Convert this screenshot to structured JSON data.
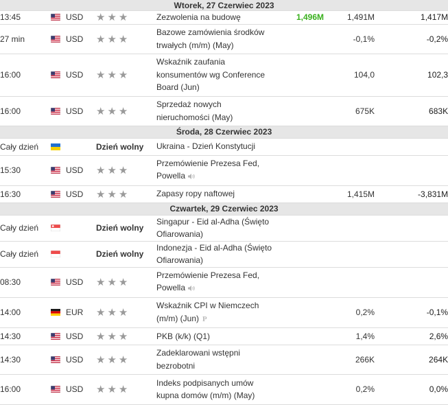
{
  "days": [
    {
      "date": "Wtorek, 27 Czerwiec 2023",
      "events": [
        {
          "time": "13:45",
          "flag": "us-flag-icon",
          "currency": "USD",
          "stars": "★★★",
          "event": [
            "Zezwolenia na budowę"
          ],
          "actual": "1,496M",
          "actual_color": "green",
          "forecast": "1,491M",
          "previous": "1,417M",
          "h": 19
        },
        {
          "time": "27 min",
          "flag": "us-flag-icon",
          "currency": "USD",
          "stars": "★★★",
          "event": [
            "Bazowe zamówienia środków",
            "trwałych (m/m) (May)"
          ],
          "actual": "",
          "forecast": "-0,1%",
          "previous": "-0,2%",
          "h": 43
        },
        {
          "time": "16:00",
          "flag": "us-flag-icon",
          "currency": "USD",
          "stars": "★★★",
          "event": [
            "Wskaźnik zaufania",
            "konsumentów wg Conference",
            "Board (Jun)"
          ],
          "actual": "",
          "forecast": "104,0",
          "previous": "102,3",
          "h": 62
        },
        {
          "time": "16:00",
          "flag": "us-flag-icon",
          "currency": "USD",
          "stars": "★★★",
          "event": [
            "Sprzedaż nowych",
            "nieruchomości (May)"
          ],
          "actual": "",
          "forecast": "675K",
          "previous": "683K",
          "h": 43
        }
      ]
    },
    {
      "date": "Środa, 28 Czerwiec 2023",
      "events": [
        {
          "time": "Cały dzień",
          "flag": "ua-flag-icon",
          "currency": "",
          "stars": "Dzień wolny",
          "holiday": true,
          "event": [
            "Ukraina - Dzień Konstytucji"
          ],
          "actual": "",
          "forecast": "",
          "previous": "",
          "h": 25
        },
        {
          "time": "15:30",
          "flag": "us-flag-icon",
          "currency": "USD",
          "stars": "★★★",
          "event": [
            "Przemówienie Prezesa Fed,",
            "Powella"
          ],
          "speech": true,
          "actual": "",
          "forecast": "",
          "previous": "",
          "h": 44
        },
        {
          "time": "16:30",
          "flag": "us-flag-icon",
          "currency": "USD",
          "stars": "★★★",
          "event": [
            "Zapasy ropy naftowej"
          ],
          "actual": "",
          "forecast": "1,415M",
          "previous": "-3,831M",
          "h": 25
        }
      ]
    },
    {
      "date": "Czwartek, 29 Czerwiec 2023",
      "events": [
        {
          "time": "Cały dzień",
          "flag": "sg-flag-icon",
          "currency": "",
          "stars": "Dzień wolny",
          "holiday": true,
          "event": [
            "Singapur - Eid al-Adha (Święto Ofiarowania)"
          ],
          "actual": "",
          "forecast": "",
          "previous": "",
          "h": 25
        },
        {
          "time": "Cały dzień",
          "flag": "id-flag-icon",
          "currency": "",
          "stars": "Dzień wolny",
          "holiday": true,
          "event": [
            "Indonezja - Eid al-Adha (Święto Ofiarowania)"
          ],
          "actual": "",
          "forecast": "",
          "previous": "",
          "h": 25
        },
        {
          "time": "08:30",
          "flag": "us-flag-icon",
          "currency": "USD",
          "stars": "★★★",
          "event": [
            "Przemówienie Prezesa Fed,",
            "Powella"
          ],
          "speech": true,
          "actual": "",
          "forecast": "",
          "previous": "",
          "h": 44
        },
        {
          "time": "14:00",
          "flag": "de-flag-icon",
          "currency": "EUR",
          "stars": "★★★",
          "event": [
            "Wskaźnik CPI w Niemczech",
            "(m/m) (Jun)"
          ],
          "prelim": "P",
          "actual": "",
          "forecast": "0,2%",
          "previous": "-0,1%",
          "h": 44
        },
        {
          "time": "14:30",
          "flag": "us-flag-icon",
          "currency": "USD",
          "stars": "★★★",
          "event": [
            "PKB (k/k) (Q1)"
          ],
          "actual": "",
          "forecast": "1,4%",
          "previous": "2,6%",
          "h": 25
        },
        {
          "time": "14:30",
          "flag": "us-flag-icon",
          "currency": "USD",
          "stars": "★★★",
          "event": [
            "Zadeklarowani wstępni",
            "bezrobotni"
          ],
          "actual": "",
          "forecast": "266K",
          "previous": "264K",
          "h": 43
        },
        {
          "time": "16:00",
          "flag": "us-flag-icon",
          "currency": "USD",
          "stars": "★★★",
          "event": [
            "Indeks podpisanych umów",
            "kupna domów (m/m) (May)"
          ],
          "actual": "",
          "forecast": "0,2%",
          "previous": "0,0%",
          "h": 44
        }
      ]
    }
  ]
}
